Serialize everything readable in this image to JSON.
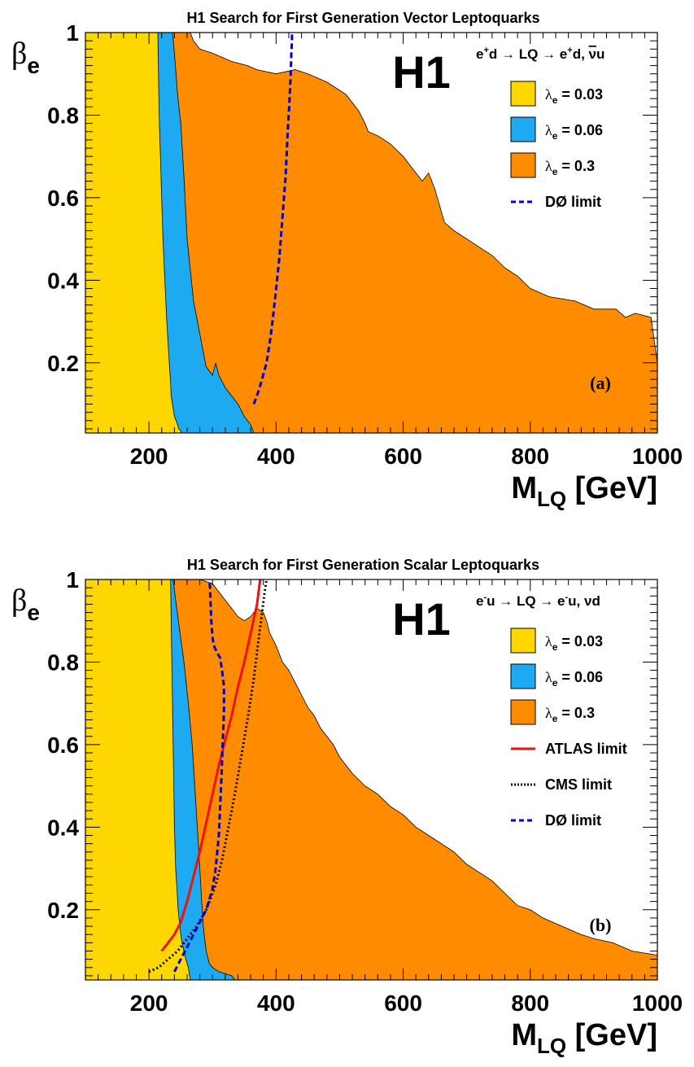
{
  "chart_data": [
    {
      "type": "area",
      "panel_label": "(a)",
      "title": "H1 Search for First Generation Vector Leptoquarks",
      "logo": "H1",
      "process": {
        "pre": "e",
        "pre_sup": "+",
        "mid": "d → LQ → e",
        "mid_sup": "+",
        "post": "d, ",
        "bar": "ν",
        "end": "u"
      },
      "ylabel": {
        "main": "β",
        "sub": "e"
      },
      "xlabel": {
        "main": "M",
        "sub": "LQ",
        "rest": " [GeV]"
      },
      "xlim": [
        100,
        1000
      ],
      "ylim": [
        0.03,
        1.0
      ],
      "xticks": [
        "200",
        "400",
        "600",
        "800",
        "1000"
      ],
      "yticks": [
        "0.2",
        "0.4",
        "0.6",
        "0.8",
        "1"
      ],
      "legend": [
        {
          "sym": "λ",
          "sub": "e",
          "text": " = 0.03",
          "kind": "box",
          "color": "#FFD700"
        },
        {
          "sym": "λ",
          "sub": "e",
          "text": " = 0.06",
          "kind": "box",
          "color": "#1EAAF0"
        },
        {
          "sym": "λ",
          "sub": "e",
          "text": " = 0.3",
          "kind": "box",
          "color": "#FF8C00"
        },
        {
          "sym": "",
          "sub": "",
          "text": "DØ limit",
          "kind": "dash",
          "color": "#0000CC"
        }
      ],
      "series": [
        {
          "name": "λe = 0.3",
          "color": "#FF8C00",
          "x": [
            100,
            100,
            265,
            270,
            280,
            300,
            330,
            355,
            370,
            400,
            430,
            450,
            480,
            500,
            510,
            520,
            530,
            540,
            545,
            560,
            580,
            600,
            620,
            630,
            640,
            650,
            665,
            680,
            700,
            720,
            740,
            760,
            780,
            800,
            830,
            870,
            900,
            935,
            950,
            965,
            990,
            1000,
            1000
          ],
          "y": [
            0.03,
            1.0,
            1.0,
            0.98,
            0.96,
            0.95,
            0.93,
            0.92,
            0.91,
            0.9,
            0.91,
            0.9,
            0.88,
            0.86,
            0.85,
            0.83,
            0.81,
            0.78,
            0.76,
            0.75,
            0.73,
            0.7,
            0.66,
            0.64,
            0.66,
            0.62,
            0.54,
            0.52,
            0.5,
            0.48,
            0.46,
            0.43,
            0.41,
            0.38,
            0.36,
            0.35,
            0.33,
            0.33,
            0.31,
            0.32,
            0.31,
            0.2,
            0.03
          ]
        },
        {
          "name": "λe = 0.06",
          "color": "#1EAAF0",
          "x": [
            100,
            100,
            237,
            240,
            245,
            250,
            255,
            260,
            270,
            285,
            290,
            300,
            305,
            310,
            320,
            330,
            340,
            350,
            360,
            365,
            360,
            340,
            320,
            300,
            270,
            250,
            240,
            100
          ],
          "y": [
            0.03,
            1.0,
            1.0,
            0.95,
            0.85,
            0.78,
            0.65,
            0.5,
            0.35,
            0.23,
            0.19,
            0.17,
            0.2,
            0.17,
            0.14,
            0.12,
            0.1,
            0.07,
            0.05,
            0.03,
            0.03,
            0.03,
            0.03,
            0.03,
            0.03,
            0.03,
            0.03,
            0.03
          ]
        },
        {
          "name": "λe = 0.03",
          "color": "#FFD700",
          "x": [
            100,
            100,
            214,
            215,
            216,
            218,
            220,
            222,
            225,
            228,
            230,
            232,
            234,
            235,
            237,
            239,
            240,
            245,
            247,
            250,
            252,
            100
          ],
          "y": [
            0.03,
            1.0,
            1.0,
            0.9,
            0.8,
            0.7,
            0.6,
            0.5,
            0.4,
            0.3,
            0.25,
            0.2,
            0.15,
            0.12,
            0.1,
            0.08,
            0.07,
            0.05,
            0.04,
            0.035,
            0.03,
            0.03
          ]
        },
        {
          "name": "DØ limit",
          "color": "#0000CC",
          "style": "dash",
          "x": [
            365,
            372,
            378,
            385,
            392,
            398,
            405,
            410,
            415,
            418,
            421,
            423,
            424,
            425,
            425
          ],
          "y": [
            0.1,
            0.13,
            0.16,
            0.2,
            0.27,
            0.35,
            0.45,
            0.55,
            0.65,
            0.75,
            0.83,
            0.9,
            0.95,
            0.98,
            1.0
          ]
        }
      ]
    },
    {
      "type": "area",
      "panel_label": "(b)",
      "title": "H1 Search for First Generation Scalar Leptoquarks",
      "logo": "H1",
      "process": {
        "pre": "e",
        "pre_sup": "-",
        "mid": "u → LQ → e",
        "mid_sup": "-",
        "post": "u, νd",
        "bar": "",
        "end": ""
      },
      "ylabel": {
        "main": "β",
        "sub": "e"
      },
      "xlabel": {
        "main": "M",
        "sub": "LQ",
        "rest": " [GeV]"
      },
      "xlim": [
        100,
        1000
      ],
      "ylim": [
        0.03,
        1.0
      ],
      "xticks": [
        "200",
        "400",
        "600",
        "800",
        "1000"
      ],
      "yticks": [
        "0.2",
        "0.4",
        "0.6",
        "0.8",
        "1"
      ],
      "legend": [
        {
          "sym": "λ",
          "sub": "e",
          "text": " = 0.03",
          "kind": "box",
          "color": "#FFD700"
        },
        {
          "sym": "λ",
          "sub": "e",
          "text": " = 0.06",
          "kind": "box",
          "color": "#1EAAF0"
        },
        {
          "sym": "λ",
          "sub": "e",
          "text": " = 0.3",
          "kind": "box",
          "color": "#FF8C00"
        },
        {
          "sym": "",
          "sub": "",
          "text": "ATLAS limit",
          "kind": "solid",
          "color": "#EE1111"
        },
        {
          "sym": "",
          "sub": "",
          "text": "CMS limit",
          "kind": "dot",
          "color": "#000000"
        },
        {
          "sym": "",
          "sub": "",
          "text": "DØ limit",
          "kind": "dash",
          "color": "#0000CC"
        }
      ],
      "series": [
        {
          "name": "λe = 0.3",
          "color": "#FF8C00",
          "x": [
            100,
            100,
            280,
            300,
            310,
            320,
            330,
            340,
            350,
            360,
            370,
            380,
            385,
            390,
            400,
            405,
            410,
            420,
            430,
            440,
            450,
            460,
            470,
            480,
            490,
            500,
            510,
            520,
            540,
            560,
            580,
            600,
            620,
            650,
            680,
            700,
            720,
            740,
            760,
            780,
            800,
            820,
            850,
            880,
            900,
            930,
            960,
            1000,
            1000
          ],
          "y": [
            0.03,
            1.0,
            1.0,
            0.99,
            0.97,
            0.95,
            0.93,
            0.91,
            0.9,
            0.91,
            0.93,
            0.92,
            0.9,
            0.87,
            0.84,
            0.82,
            0.8,
            0.78,
            0.75,
            0.72,
            0.69,
            0.67,
            0.64,
            0.62,
            0.6,
            0.57,
            0.55,
            0.53,
            0.5,
            0.48,
            0.45,
            0.43,
            0.4,
            0.37,
            0.34,
            0.31,
            0.29,
            0.27,
            0.24,
            0.21,
            0.2,
            0.18,
            0.16,
            0.14,
            0.13,
            0.12,
            0.1,
            0.09,
            0.03
          ]
        },
        {
          "name": "λe = 0.06",
          "color": "#1EAAF0",
          "x": [
            100,
            100,
            238,
            242,
            248,
            255,
            262,
            268,
            272,
            276,
            280,
            283,
            286,
            290,
            295,
            300,
            310,
            320,
            330,
            335,
            330,
            320,
            300,
            280,
            100
          ],
          "y": [
            0.03,
            1.0,
            1.0,
            0.95,
            0.88,
            0.8,
            0.7,
            0.6,
            0.5,
            0.4,
            0.3,
            0.22,
            0.15,
            0.1,
            0.07,
            0.06,
            0.05,
            0.045,
            0.04,
            0.03,
            0.03,
            0.03,
            0.03,
            0.03,
            0.03
          ]
        },
        {
          "name": "λe = 0.03",
          "color": "#FFD700",
          "x": [
            100,
            100,
            234,
            235,
            236,
            237,
            238,
            239,
            240,
            242,
            244,
            246,
            248,
            250,
            252,
            255,
            258,
            260,
            262,
            264,
            265,
            100
          ],
          "y": [
            0.03,
            1.0,
            1.0,
            0.9,
            0.8,
            0.7,
            0.6,
            0.5,
            0.4,
            0.3,
            0.25,
            0.2,
            0.17,
            0.14,
            0.12,
            0.1,
            0.08,
            0.07,
            0.06,
            0.04,
            0.03,
            0.03
          ]
        },
        {
          "name": "ATLAS limit",
          "color": "#EE1111",
          "style": "solid",
          "x": [
            220,
            230,
            240,
            250,
            260,
            270,
            280,
            290,
            300,
            310,
            320,
            330,
            340,
            350,
            360,
            370,
            375
          ],
          "y": [
            0.1,
            0.12,
            0.14,
            0.17,
            0.22,
            0.28,
            0.34,
            0.41,
            0.48,
            0.55,
            0.61,
            0.67,
            0.74,
            0.8,
            0.87,
            0.94,
            1.0
          ]
        },
        {
          "name": "CMS limit",
          "color": "#000000",
          "style": "dot",
          "x": [
            200,
            215,
            230,
            245,
            260,
            275,
            290,
            305,
            315,
            325,
            335,
            345,
            355,
            365,
            372,
            378,
            382,
            385
          ],
          "y": [
            0.05,
            0.06,
            0.08,
            0.1,
            0.13,
            0.16,
            0.2,
            0.26,
            0.32,
            0.4,
            0.48,
            0.57,
            0.66,
            0.76,
            0.85,
            0.92,
            0.97,
            1.0
          ]
        },
        {
          "name": "DØ limit",
          "color": "#0000CC",
          "style": "dash",
          "x": [
            240,
            250,
            260,
            270,
            280,
            290,
            300,
            305,
            310,
            312,
            314,
            316,
            318,
            318,
            315,
            312,
            308,
            305,
            302,
            300,
            298,
            297,
            296,
            295
          ],
          "y": [
            0.05,
            0.08,
            0.11,
            0.14,
            0.17,
            0.2,
            0.25,
            0.3,
            0.38,
            0.45,
            0.52,
            0.6,
            0.68,
            0.74,
            0.78,
            0.81,
            0.82,
            0.83,
            0.84,
            0.86,
            0.9,
            0.94,
            0.98,
            1.0
          ]
        }
      ]
    }
  ]
}
